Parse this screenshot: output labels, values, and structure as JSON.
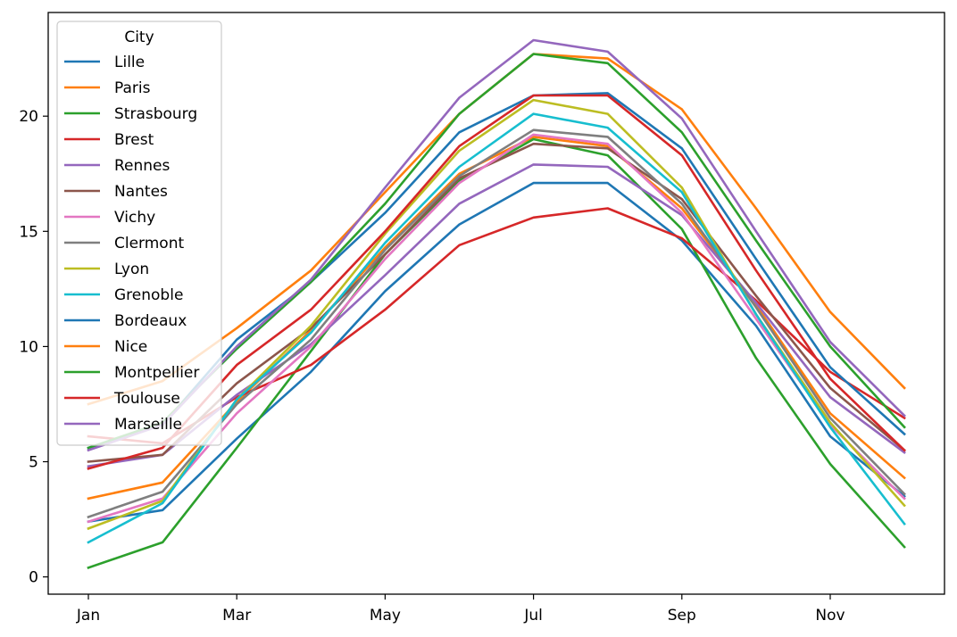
{
  "chart_data": {
    "type": "line",
    "title": "",
    "xlabel": "",
    "ylabel": "",
    "x": [
      "Jan",
      "Feb",
      "Mar",
      "Apr",
      "May",
      "Jun",
      "Jul",
      "Aug",
      "Sep",
      "Oct",
      "Nov",
      "Dec"
    ],
    "x_tick_labels": [
      "Jan",
      "Mar",
      "May",
      "Jul",
      "Sep",
      "Nov"
    ],
    "y_ticks": [
      0,
      5,
      10,
      15,
      20
    ],
    "ylim": [
      -0.75,
      24.5
    ],
    "grid": false,
    "legend": {
      "title": "City",
      "placement": "upper-left"
    },
    "series": [
      {
        "name": "Lille",
        "color": "#1f77b4",
        "values": [
          2.4,
          2.9,
          6.0,
          8.9,
          12.4,
          15.3,
          17.1,
          17.1,
          14.6,
          10.9,
          6.1,
          3.5
        ]
      },
      {
        "name": "Paris",
        "color": "#ff7f0e",
        "values": [
          3.4,
          4.1,
          7.6,
          10.7,
          14.3,
          17.5,
          19.1,
          18.7,
          16.0,
          11.8,
          7.1,
          4.3
        ]
      },
      {
        "name": "Strasbourg",
        "color": "#2ca02c",
        "values": [
          0.4,
          1.5,
          5.6,
          9.8,
          14.0,
          17.2,
          19.0,
          18.3,
          15.1,
          9.5,
          4.9,
          1.3
        ]
      },
      {
        "name": "Brest",
        "color": "#d62728",
        "values": [
          6.1,
          5.8,
          7.8,
          9.2,
          11.6,
          14.4,
          15.6,
          16.0,
          14.7,
          12.0,
          8.9,
          6.9
        ]
      },
      {
        "name": "Rennes",
        "color": "#9467bd",
        "values": [
          4.8,
          5.3,
          7.9,
          10.1,
          13.1,
          16.2,
          17.9,
          17.8,
          15.7,
          11.9,
          7.8,
          5.4
        ]
      },
      {
        "name": "Nantes",
        "color": "#8c564b",
        "values": [
          5.0,
          5.3,
          8.4,
          10.8,
          14.0,
          17.3,
          18.8,
          18.6,
          16.4,
          12.2,
          8.2,
          5.5
        ]
      },
      {
        "name": "Vichy",
        "color": "#e377c2",
        "values": [
          2.4,
          3.4,
          7.1,
          10.0,
          13.8,
          17.1,
          19.2,
          18.8,
          15.8,
          11.2,
          6.6,
          3.4
        ]
      },
      {
        "name": "Clermont",
        "color": "#7f7f7f",
        "values": [
          2.6,
          3.7,
          7.5,
          10.3,
          14.2,
          17.4,
          19.4,
          19.1,
          16.2,
          11.7,
          6.9,
          3.6
        ]
      },
      {
        "name": "Lyon",
        "color": "#bcbd22",
        "values": [
          2.1,
          3.3,
          7.7,
          10.9,
          14.9,
          18.5,
          20.7,
          20.1,
          16.9,
          11.4,
          6.7,
          3.1
        ]
      },
      {
        "name": "Grenoble",
        "color": "#17becf",
        "values": [
          1.5,
          3.2,
          7.7,
          10.6,
          14.5,
          17.8,
          20.1,
          19.5,
          16.7,
          11.4,
          6.5,
          2.3
        ]
      },
      {
        "name": "Bordeaux",
        "color": "#1f77b4",
        "values": [
          5.6,
          6.6,
          10.3,
          12.8,
          15.8,
          19.3,
          20.9,
          21.0,
          18.6,
          13.8,
          9.1,
          6.2
        ]
      },
      {
        "name": "Nice",
        "color": "#ff7f0e",
        "values": [
          7.5,
          8.5,
          10.8,
          13.3,
          16.7,
          20.1,
          22.7,
          22.5,
          20.3,
          16.0,
          11.5,
          8.2
        ]
      },
      {
        "name": "Montpellier",
        "color": "#2ca02c",
        "values": [
          5.6,
          6.7,
          9.9,
          12.8,
          16.2,
          20.1,
          22.7,
          22.3,
          19.3,
          14.6,
          10.0,
          6.5
        ]
      },
      {
        "name": "Toulouse",
        "color": "#d62728",
        "values": [
          4.7,
          5.6,
          9.2,
          11.6,
          15.0,
          18.7,
          20.9,
          20.9,
          18.3,
          13.3,
          8.6,
          5.5
        ]
      },
      {
        "name": "Marseille",
        "color": "#9467bd",
        "values": [
          5.5,
          6.6,
          10.0,
          12.9,
          16.9,
          20.8,
          23.3,
          22.8,
          19.9,
          15.0,
          10.2,
          7.0
        ]
      }
    ]
  }
}
